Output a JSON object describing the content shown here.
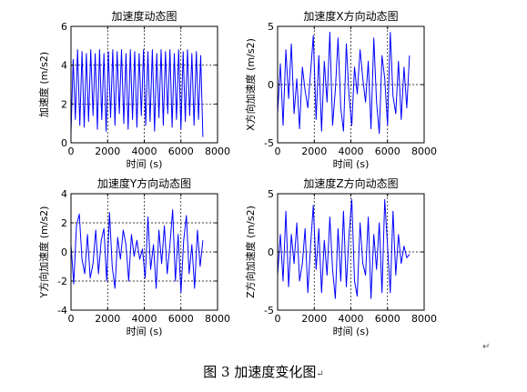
{
  "chart_data": [
    {
      "type": "line",
      "title": "加速度动态图",
      "xlabel": "时间 (s)",
      "ylabel": "加速度 (m/s2)",
      "xlim": [
        0,
        8000
      ],
      "ylim": [
        0,
        6
      ],
      "xticks": [
        "0",
        "2000",
        "4000",
        "6000",
        "8000"
      ],
      "yticks": [
        "0",
        "2",
        "4",
        "6"
      ],
      "grid": "dashed-major",
      "series": [
        {
          "color": "#0000ff",
          "x": [
            0,
            120,
            240,
            360,
            480,
            600,
            720,
            840,
            960,
            1080,
            1200,
            1320,
            1440,
            1560,
            1680,
            1800,
            1920,
            2040,
            2160,
            2280,
            2400,
            2520,
            2640,
            2760,
            2880,
            3000,
            3120,
            3240,
            3360,
            3480,
            3600,
            3720,
            3840,
            3960,
            4080,
            4200,
            4320,
            4440,
            4560,
            4680,
            4800,
            4920,
            5040,
            5160,
            5280,
            5400,
            5520,
            5640,
            5760,
            5880,
            6000,
            6120,
            6240,
            6360,
            6480,
            6600,
            6720,
            6840,
            6960,
            7080,
            7200
          ],
          "y": [
            0.5,
            4.3,
            1.2,
            4.8,
            0.9,
            4.7,
            0.8,
            4.6,
            1.1,
            4.8,
            1.4,
            4.6,
            0.7,
            4.8,
            1.2,
            4.6,
            0.6,
            4.7,
            1.3,
            4.8,
            0.9,
            4.7,
            1.5,
            4.8,
            1.0,
            4.6,
            0.7,
            4.8,
            1.2,
            4.7,
            0.8,
            4.6,
            1.4,
            4.8,
            0.9,
            4.7,
            1.1,
            4.8,
            0.6,
            4.6,
            1.3,
            4.8,
            0.9,
            4.7,
            1.5,
            4.8,
            0.8,
            4.6,
            1.2,
            4.8,
            0.7,
            4.7,
            1.1,
            4.8,
            1.4,
            4.6,
            0.9,
            4.7,
            1.2,
            4.5,
            0.3
          ]
        }
      ]
    },
    {
      "type": "line",
      "title": "加速度X方向动态图",
      "xlabel": "时间 (s)",
      "ylabel": "X方向加速度 (m/s2)",
      "xlim": [
        0,
        8000
      ],
      "ylim": [
        -5,
        5
      ],
      "xticks": [
        "0",
        "2000",
        "4000",
        "6000",
        "8000"
      ],
      "yticks": [
        "-5",
        "0",
        "5"
      ],
      "grid": "dashed-major",
      "series": [
        {
          "color": "#0000ff",
          "x": [
            0,
            150,
            300,
            450,
            600,
            750,
            900,
            1050,
            1200,
            1350,
            1500,
            1650,
            1800,
            1950,
            2100,
            2250,
            2400,
            2550,
            2700,
            2850,
            3000,
            3150,
            3300,
            3450,
            3600,
            3750,
            3900,
            4050,
            4200,
            4350,
            4500,
            4650,
            4800,
            4950,
            5100,
            5250,
            5400,
            5550,
            5700,
            5850,
            6000,
            6150,
            6300,
            6450,
            6600,
            6750,
            6900,
            7050,
            7200
          ],
          "y": [
            -2.5,
            1.8,
            -3.5,
            3.0,
            -1.2,
            3.5,
            -2.5,
            0.5,
            -3.8,
            1.5,
            -0.5,
            -2.0,
            1.0,
            4.2,
            -3.0,
            2.5,
            -4.0,
            2.0,
            -1.5,
            4.5,
            -3.5,
            -0.5,
            4.0,
            -2.0,
            -4.0,
            3.5,
            -1.0,
            -3.5,
            1.5,
            -0.8,
            3.0,
            0.5,
            -1.5,
            2.0,
            -3.8,
            4.0,
            -1.5,
            -4.2,
            2.5,
            0.5,
            -3.5,
            4.5,
            -1.0,
            -2.5,
            2.0,
            -3.0,
            1.5,
            -2.0,
            2.5
          ]
        }
      ]
    },
    {
      "type": "line",
      "title": "加速度Y方向动态图",
      "xlabel": "时间 (s)",
      "ylabel": "Y方向加速度 (m/s2)",
      "xlim": [
        0,
        8000
      ],
      "ylim": [
        -4,
        4
      ],
      "xticks": [
        "0",
        "2000",
        "4000",
        "6000",
        "8000"
      ],
      "yticks": [
        "-4",
        "-2",
        "0",
        "2",
        "4"
      ],
      "grid": "dashed-major",
      "series": [
        {
          "color": "#0000ff",
          "x": [
            0,
            150,
            300,
            450,
            600,
            750,
            900,
            1050,
            1200,
            1350,
            1500,
            1650,
            1800,
            1950,
            2100,
            2250,
            2400,
            2550,
            2700,
            2850,
            3000,
            3150,
            3300,
            3450,
            3600,
            3750,
            3900,
            4050,
            4200,
            4350,
            4500,
            4650,
            4800,
            4950,
            5100,
            5250,
            5400,
            5550,
            5700,
            5850,
            6000,
            6150,
            6300,
            6450,
            6600,
            6750,
            6900,
            7050,
            7200
          ],
          "y": [
            0.5,
            -2.2,
            1.8,
            2.6,
            -0.5,
            -1.5,
            1.2,
            -1.8,
            -0.8,
            1.5,
            -1.5,
            0.8,
            1.6,
            -2.0,
            2.7,
            -1.0,
            -2.5,
            1.0,
            -0.5,
            1.5,
            0.5,
            -2.0,
            1.2,
            -0.3,
            0.8,
            -0.5,
            0.2,
            -1.8,
            2.4,
            -1.2,
            0.5,
            -2.5,
            1.5,
            -0.8,
            1.8,
            -1.5,
            0.5,
            2.9,
            -2.0,
            1.2,
            -2.8,
            0.8,
            2.5,
            -1.5,
            0.5,
            -2.5,
            1.5,
            -1.0,
            0.8
          ]
        }
      ]
    },
    {
      "type": "line",
      "title": "加速度Z方向动态图",
      "xlabel": "时间 (s)",
      "ylabel": "Z方向加速度 (m/s2)",
      "xlim": [
        0,
        8000
      ],
      "ylim": [
        -5,
        5
      ],
      "xticks": [
        "0",
        "2000",
        "4000",
        "6000",
        "8000"
      ],
      "yticks": [
        "-5",
        "0",
        "5"
      ],
      "grid": "dashed-major",
      "series": [
        {
          "color": "#0000ff",
          "x": [
            0,
            150,
            300,
            450,
            600,
            750,
            900,
            1050,
            1200,
            1350,
            1500,
            1650,
            1800,
            1950,
            2100,
            2250,
            2400,
            2550,
            2700,
            2850,
            3000,
            3150,
            3300,
            3450,
            3600,
            3750,
            3900,
            4050,
            4200,
            4350,
            4500,
            4650,
            4800,
            4950,
            5100,
            5250,
            5400,
            5550,
            5700,
            5850,
            6000,
            6150,
            6300,
            6450,
            6600,
            6750,
            6900,
            7050,
            7200
          ],
          "y": [
            -2.0,
            1.5,
            -2.5,
            3.5,
            -3.0,
            1.5,
            -1.0,
            2.5,
            -2.5,
            -1.0,
            2.0,
            -3.5,
            0.5,
            4.0,
            -1.5,
            2.0,
            -3.5,
            1.0,
            -2.0,
            3.0,
            -1.5,
            -4.0,
            2.0,
            -2.5,
            3.5,
            -3.0,
            1.5,
            4.5,
            -2.5,
            -3.8,
            2.5,
            -1.0,
            -2.0,
            3.0,
            -4.0,
            1.5,
            -1.5,
            2.5,
            -3.5,
            4.5,
            0.5,
            -3.5,
            3.5,
            -2.0,
            1.5,
            -1.0,
            0.5,
            -0.5,
            -0.2
          ]
        }
      ]
    }
  ],
  "caption": "图 3  加速度变化图",
  "return_mark": "↵"
}
